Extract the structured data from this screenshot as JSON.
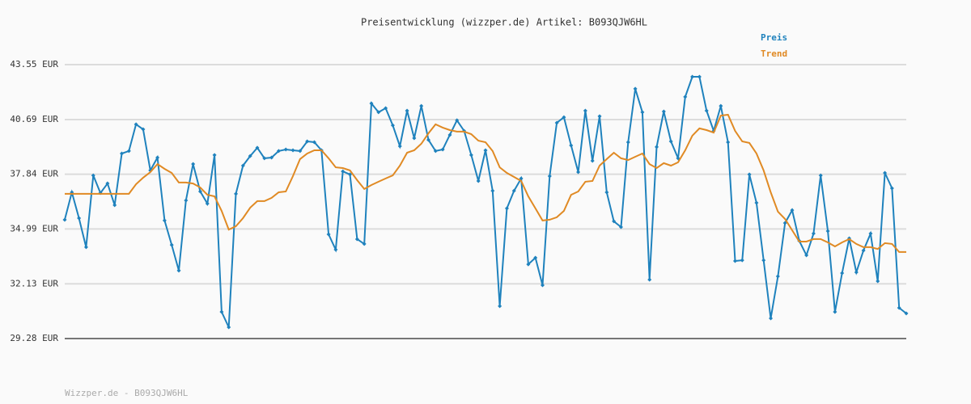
{
  "chart_data": {
    "type": "line",
    "title": "Preisentwicklung (wizzper.de) Artikel: B093QJW6HL",
    "footer": "Wizzper.de - B093QJW6HL",
    "ylim": [
      29.28,
      43.55
    ],
    "yticks": [
      {
        "value": 29.28,
        "label": "29.28 EUR"
      },
      {
        "value": 32.13,
        "label": "32.13 EUR"
      },
      {
        "value": 34.99,
        "label": "34.99 EUR"
      },
      {
        "value": 37.84,
        "label": "37.84 EUR"
      },
      {
        "value": 40.69,
        "label": "40.69 EUR"
      },
      {
        "value": 43.55,
        "label": "43.55 EUR"
      }
    ],
    "grid": true,
    "legend_position": "top-right",
    "series": [
      {
        "name": "Preis",
        "color": "#1f82bd",
        "markers": true,
        "values": [
          35.47,
          36.9,
          35.55,
          34.04,
          37.78,
          36.86,
          37.36,
          36.23,
          38.92,
          39.05,
          40.44,
          40.18,
          38.04,
          38.71,
          35.43,
          34.16,
          32.82,
          36.48,
          38.37,
          36.94,
          36.31,
          38.84,
          30.67,
          29.87,
          36.82,
          38.29,
          38.79,
          39.22,
          38.67,
          38.71,
          39.05,
          39.13,
          39.09,
          39.05,
          39.55,
          39.51,
          39.09,
          34.71,
          33.91,
          37.99,
          37.83,
          34.46,
          34.21,
          41.53,
          41.07,
          41.28,
          40.39,
          39.3,
          41.15,
          39.72,
          41.4,
          39.63,
          39.05,
          39.13,
          39.89,
          40.65,
          40.1,
          38.84,
          37.49,
          39.09,
          36.98,
          30.97,
          36.06,
          36.98,
          37.62,
          33.15,
          33.49,
          32.06,
          37.74,
          40.52,
          40.81,
          39.34,
          37.95,
          41.15,
          38.54,
          40.86,
          36.9,
          35.39,
          35.09,
          39.51,
          42.29,
          41.07,
          32.35,
          39.26,
          41.11,
          39.55,
          38.67,
          41.87,
          42.92,
          42.92,
          41.15,
          40.1,
          41.4,
          39.51,
          33.32,
          33.36,
          37.83,
          36.35,
          33.36,
          30.33,
          32.52,
          35.3,
          35.97,
          34.37,
          33.62,
          34.75,
          37.78,
          34.88,
          30.67,
          32.69,
          34.5,
          32.73,
          33.87,
          34.75,
          32.27,
          37.91,
          37.11,
          30.88,
          30.59
        ]
      },
      {
        "name": "Trend",
        "color": "#e08a24",
        "markers": false,
        "values": [
          36.82,
          36.82,
          36.82,
          36.82,
          36.82,
          36.82,
          36.82,
          36.82,
          36.82,
          36.82,
          37.32,
          37.66,
          37.95,
          38.37,
          38.12,
          37.91,
          37.41,
          37.41,
          37.36,
          37.15,
          36.77,
          36.69,
          35.93,
          34.96,
          35.13,
          35.55,
          36.1,
          36.44,
          36.44,
          36.61,
          36.9,
          36.94,
          37.74,
          38.63,
          38.92,
          39.09,
          39.09,
          38.67,
          38.2,
          38.16,
          38.04,
          37.53,
          37.07,
          37.28,
          37.45,
          37.62,
          37.78,
          38.29,
          38.96,
          39.09,
          39.43,
          39.97,
          40.44,
          40.27,
          40.14,
          40.06,
          40.06,
          39.93,
          39.59,
          39.51,
          39.05,
          38.2,
          37.91,
          37.7,
          37.49,
          36.69,
          36.06,
          35.43,
          35.47,
          35.6,
          35.93,
          36.77,
          36.94,
          37.45,
          37.49,
          38.29,
          38.63,
          38.96,
          38.67,
          38.58,
          38.75,
          38.92,
          38.37,
          38.16,
          38.42,
          38.29,
          38.46,
          39.09,
          39.85,
          40.23,
          40.14,
          40.01,
          40.9,
          40.94,
          40.1,
          39.55,
          39.47,
          38.92,
          38.04,
          36.9,
          35.89,
          35.51,
          34.92,
          34.33,
          34.33,
          34.46,
          34.46,
          34.29,
          34.08,
          34.29,
          34.46,
          34.21,
          34.04,
          34.04,
          33.95,
          34.25,
          34.21,
          33.79,
          33.79
        ]
      }
    ]
  }
}
